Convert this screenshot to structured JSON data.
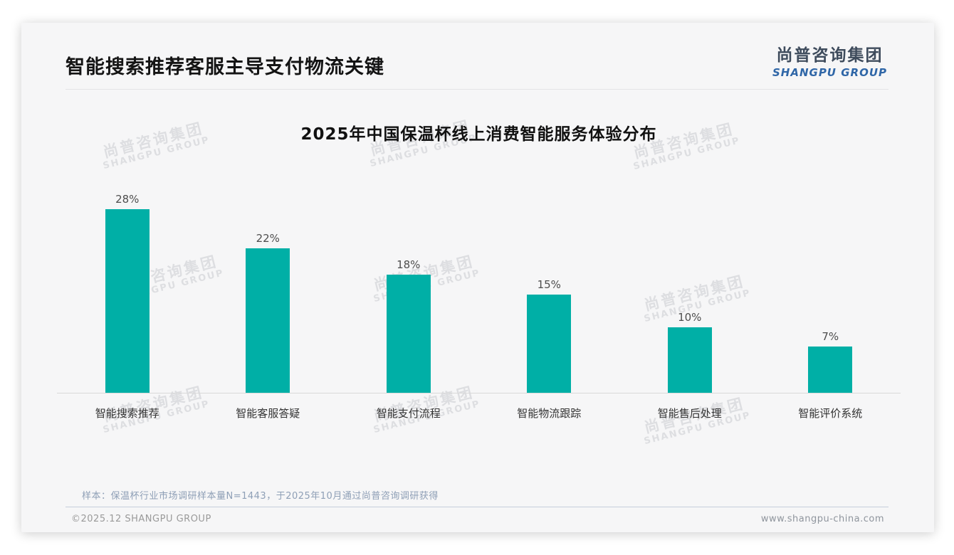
{
  "page": {
    "header": {
      "title": "智能搜索推荐客服主导支付物流关键",
      "logo": {
        "cn": "尚普咨询集团",
        "en": "SHANGPU GROUP"
      }
    },
    "watermark": {
      "cn": "尚普咨询集团",
      "en": "SHANGPU GROUP"
    },
    "footer": {
      "note": "样本：保温杯行业市场调研样本量N=1443，于2025年10月通过尚普咨询调研获得",
      "copyright": "©2025.12 SHANGPU GROUP",
      "website": "www.shangpu-china.com"
    }
  },
  "colors": {
    "accent_teal": "#00AFA6",
    "logo_blue": "#2F66A7",
    "card_background": "#F6F6F7"
  },
  "chart_data": {
    "type": "bar",
    "title": "2025年中国保温杯线上消费智能服务体验分布",
    "categories": [
      "智能搜索推荐",
      "智能客服答疑",
      "智能支付流程",
      "智能物流跟踪",
      "智能售后处理",
      "智能评价系统"
    ],
    "values": [
      28,
      22,
      18,
      15,
      10,
      7
    ],
    "value_labels": [
      "28%",
      "22%",
      "18%",
      "15%",
      "10%",
      "7%"
    ],
    "unit": "%",
    "bar_color": "#00AFA6",
    "xlabel": "",
    "ylabel": "",
    "ylim": [
      0,
      30
    ],
    "grid": false,
    "legend": false
  }
}
